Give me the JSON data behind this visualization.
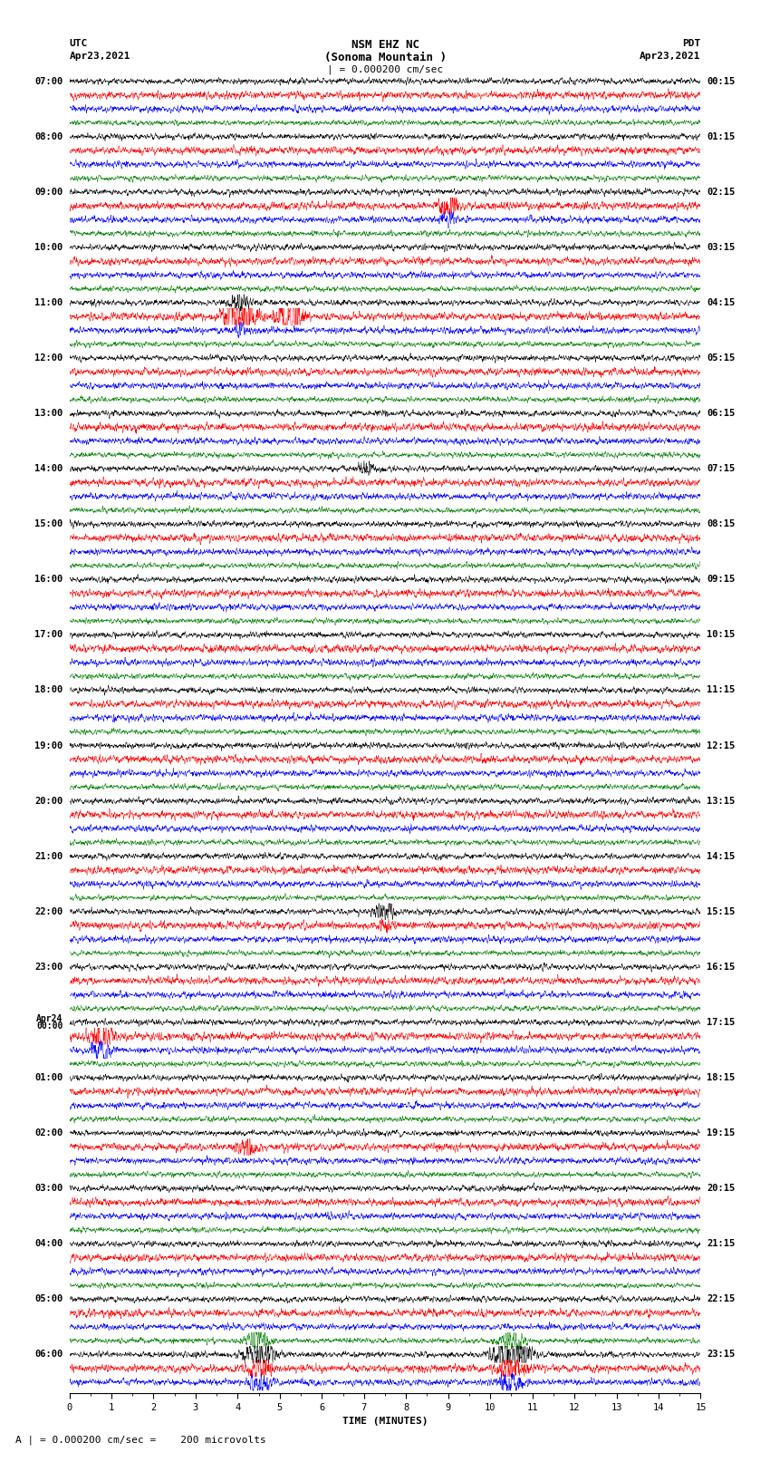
{
  "title_line1": "NSM EHZ NC",
  "title_line2": "(Sonoma Mountain )",
  "title_line3": "| = 0.000200 cm/sec",
  "label_utc": "UTC",
  "label_pdt": "PDT",
  "date_left": "Apr23,2021",
  "date_right": "Apr23,2021",
  "xlabel": "TIME (MINUTES)",
  "footer": "A | = 0.000200 cm/sec =    200 microvolts",
  "colors": [
    "black",
    "red",
    "blue",
    "green"
  ],
  "n_rows": 95,
  "n_points": 3000,
  "bg_color": "white",
  "trace_linewidth": 0.35,
  "amplitude_scale": 0.38,
  "x_min": 0,
  "x_max": 15,
  "title_fontsize": 9,
  "label_fontsize": 8,
  "tick_fontsize": 7.5,
  "footer_fontsize": 8,
  "utc_hour_times": [
    "07:00",
    "08:00",
    "09:00",
    "10:00",
    "11:00",
    "12:00",
    "13:00",
    "14:00",
    "15:00",
    "16:00",
    "17:00",
    "18:00",
    "19:00",
    "20:00",
    "21:00",
    "22:00",
    "23:00",
    "Apr24",
    "01:00",
    "02:00",
    "03:00",
    "04:00",
    "05:00",
    "06:00"
  ],
  "utc_hour_times2": [
    "",
    "",
    "",
    "",
    "",
    "",
    "",
    "",
    "",
    "",
    "",
    "",
    "",
    "",
    "",
    "",
    "",
    "00:00",
    "",
    "",
    "",
    "",
    "",
    ""
  ],
  "pdt_hour_times": [
    "00:15",
    "01:15",
    "02:15",
    "03:15",
    "04:15",
    "05:15",
    "06:15",
    "07:15",
    "08:15",
    "09:15",
    "10:15",
    "11:15",
    "12:15",
    "13:15",
    "14:15",
    "15:15",
    "16:15",
    "17:15",
    "18:15",
    "19:15",
    "20:15",
    "21:15",
    "22:15",
    "23:15"
  ]
}
